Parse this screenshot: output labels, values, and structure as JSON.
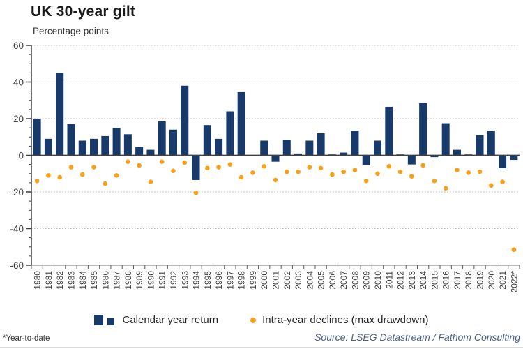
{
  "chart": {
    "title": "UK 30-year gilt",
    "subtitle": "Percentage points",
    "footnote": "*Year-to-date",
    "source": "Source: LSEG Datastream / Fathom Consulting"
  },
  "legend": {
    "bar_label": "Calendar year return",
    "dot_label": "Intra-year declines (max drawdown)"
  },
  "colors": {
    "bar": "#173A6B",
    "dot": "#F7A11A",
    "axis": "#404040",
    "grid": "#b3b3b3",
    "tick_label": "#3c3c3c"
  },
  "chart_data": {
    "type": "bar",
    "title": "UK 30-year gilt",
    "subtitle": "Percentage points",
    "xlabel": "",
    "ylabel": "Percentage points",
    "ylim": [
      -60,
      60
    ],
    "yticks": [
      60,
      40,
      20,
      0,
      -20,
      -40,
      -60
    ],
    "minor_tick_step": 5,
    "grid": "dotted horizontal lines at major ticks",
    "legend_position": "bottom",
    "categories": [
      "1980",
      "1981",
      "1982",
      "1983",
      "1984",
      "1985",
      "1986",
      "1987",
      "1988",
      "1989",
      "1990",
      "1991",
      "1992",
      "1993",
      "1994",
      "1995",
      "1996",
      "1997",
      "1998",
      "1999",
      "2000",
      "2001",
      "2002",
      "2003",
      "2004",
      "2005",
      "2006",
      "2007",
      "2008",
      "2009",
      "2010",
      "2011",
      "2012",
      "2013",
      "2014",
      "2015",
      "2016",
      "2017",
      "2018",
      "2019",
      "2020",
      "2021",
      "2022*"
    ],
    "series": [
      {
        "name": "Calendar year return",
        "type": "bar",
        "color": "#173A6B",
        "values": [
          20,
          9,
          45,
          17,
          8,
          9,
          10.5,
          15,
          11.5,
          4.5,
          3,
          18.5,
          14,
          38,
          -13.5,
          16.5,
          9,
          24,
          34.5,
          0,
          8,
          -3.5,
          8.5,
          1,
          8,
          12,
          0.5,
          1.5,
          13.5,
          -5.5,
          8,
          26.5,
          0.5,
          -5,
          28.5,
          -1,
          17.5,
          3,
          0.5,
          11,
          13.5,
          -7,
          -2.5
        ]
      },
      {
        "name": "Intra-year declines (max drawdown)",
        "type": "scatter",
        "color": "#F7A11A",
        "values": [
          -14,
          -11,
          -12,
          -6.5,
          -10.5,
          -6.5,
          -15.5,
          -11,
          -3.5,
          -5.5,
          -14.5,
          -3.5,
          -8.5,
          -4,
          -20.5,
          -7,
          -6.5,
          -5,
          -12,
          -9.5,
          -6,
          -13.5,
          -9,
          -9,
          -6.5,
          -7,
          -10.5,
          -9,
          -8,
          -14,
          -10,
          -6,
          -9,
          -11.5,
          -5.5,
          -14,
          -18,
          -8,
          -9.5,
          -9,
          -16.5,
          -14.5,
          -51.5
        ]
      }
    ]
  }
}
